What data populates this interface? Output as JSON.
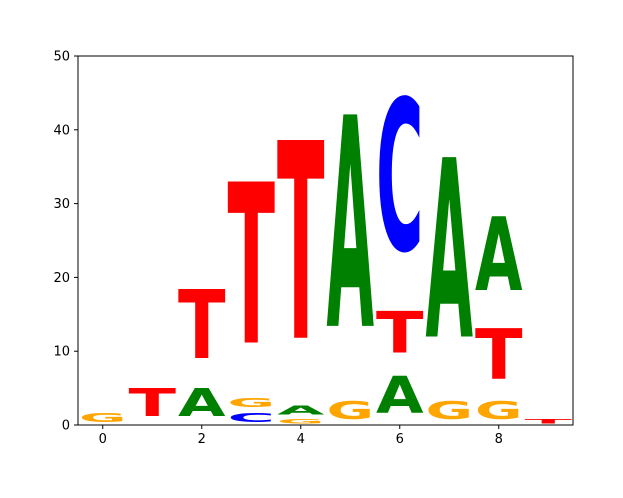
{
  "chart_data": {
    "type": "sequence-logo",
    "title": "",
    "xlabel": "",
    "ylabel": "",
    "xlim": [
      -0.5,
      9.5
    ],
    "ylim": [
      0,
      50
    ],
    "x_ticks": [
      0,
      2,
      4,
      6,
      8
    ],
    "y_ticks": [
      0,
      10,
      20,
      30,
      40,
      50
    ],
    "colors": {
      "A": "#008000",
      "C": "#0000ff",
      "G": "#ffa500",
      "T": "#ff0000"
    },
    "positions": [
      {
        "x": 0,
        "stack": [
          {
            "base": "G",
            "height": 2
          }
        ]
      },
      {
        "x": 1,
        "stack": [
          {
            "base": "T",
            "height": 6
          }
        ]
      },
      {
        "x": 2,
        "stack": [
          {
            "base": "A",
            "height": 6
          },
          {
            "base": "T",
            "height": 15
          }
        ]
      },
      {
        "x": 3,
        "stack": [
          {
            "base": "C",
            "height": 2
          },
          {
            "base": "G",
            "height": 2
          },
          {
            "base": "T",
            "height": 35
          }
        ]
      },
      {
        "x": 4,
        "stack": [
          {
            "base": "G",
            "height": 1
          },
          {
            "base": "A",
            "height": 2
          },
          {
            "base": "T",
            "height": 43
          }
        ]
      },
      {
        "x": 5,
        "stack": [
          {
            "base": "G",
            "height": 4
          },
          {
            "base": "A",
            "height": 46
          }
        ]
      },
      {
        "x": 6,
        "stack": [
          {
            "base": "A",
            "height": 8
          },
          {
            "base": "T",
            "height": 9
          },
          {
            "base": "C",
            "height": 33
          }
        ]
      },
      {
        "x": 7,
        "stack": [
          {
            "base": "G",
            "height": 4
          },
          {
            "base": "A",
            "height": 39
          }
        ]
      },
      {
        "x": 8,
        "stack": [
          {
            "base": "G",
            "height": 4
          },
          {
            "base": "T",
            "height": 11
          },
          {
            "base": "A",
            "height": 16
          }
        ]
      },
      {
        "x": 9,
        "stack": [
          {
            "base": "T",
            "height": 1
          }
        ]
      }
    ]
  }
}
